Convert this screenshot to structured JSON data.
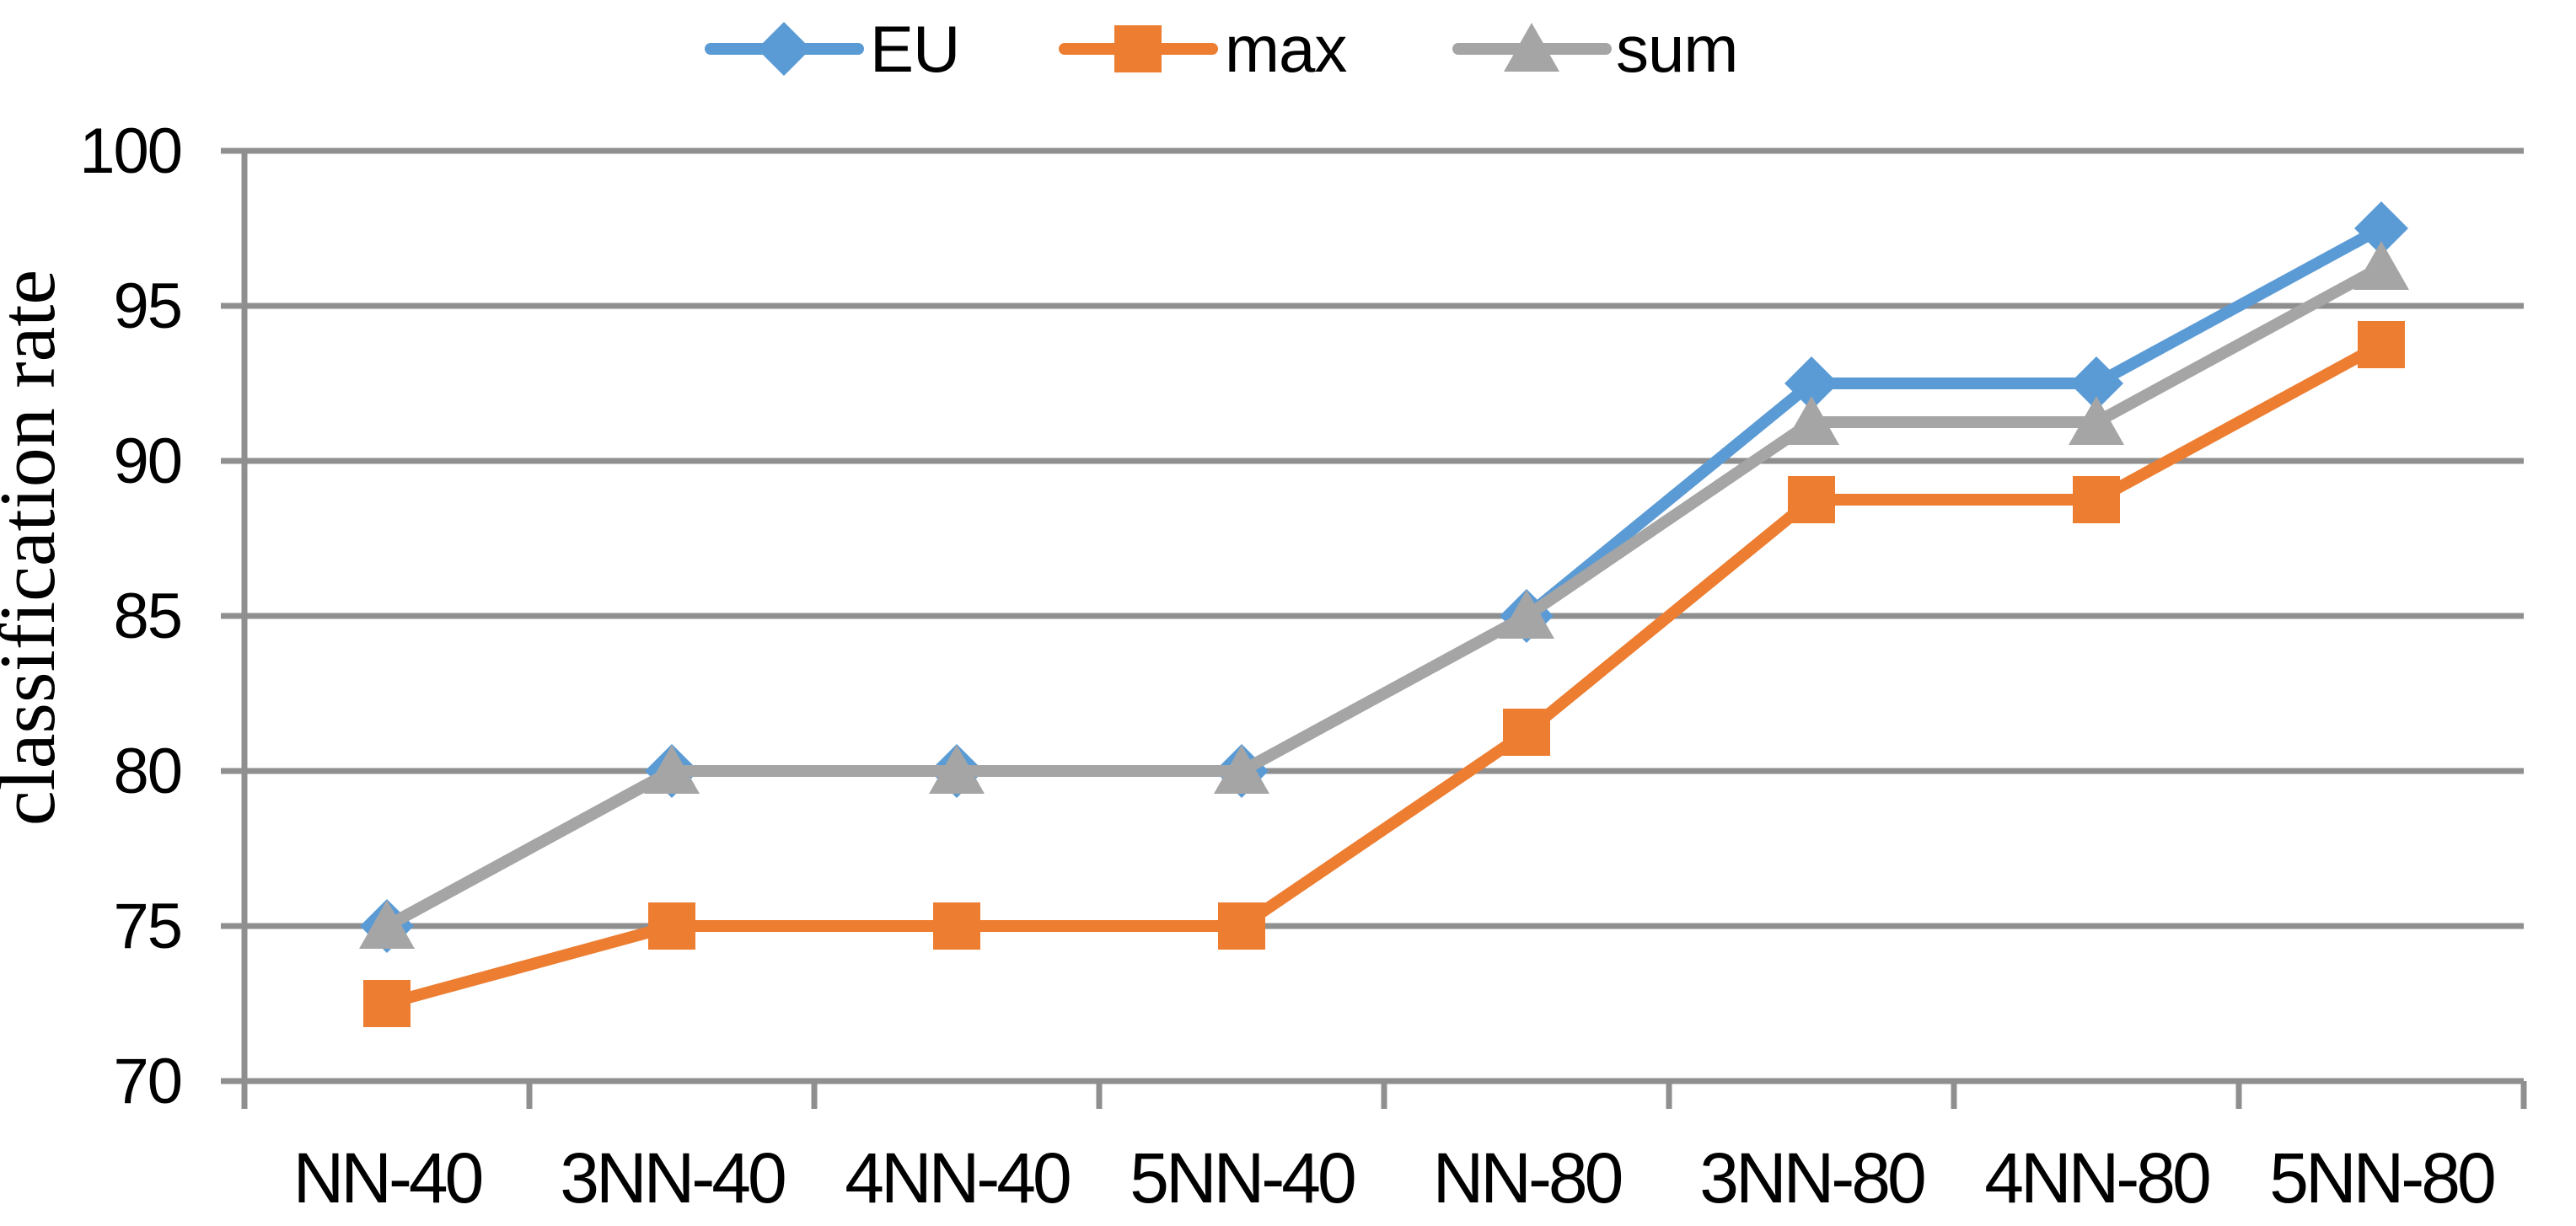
{
  "chart_data": {
    "type": "line",
    "title": "",
    "xlabel": "",
    "ylabel": "classification rate",
    "categories": [
      "NN-40",
      "3NN-40",
      "4NN-40",
      "5NN-40",
      "NN-80",
      "3NN-80",
      "4NN-80",
      "5NN-80"
    ],
    "series": [
      {
        "name": "EU",
        "color": "#5B9BD5",
        "marker": "diamond",
        "values": [
          75,
          80,
          80,
          80,
          85,
          92.5,
          92.5,
          97.5
        ]
      },
      {
        "name": "max",
        "color": "#ED7D31",
        "marker": "square",
        "values": [
          72.5,
          75,
          75,
          75,
          81.25,
          88.75,
          88.75,
          93.75
        ]
      },
      {
        "name": "sum",
        "color": "#A5A5A5",
        "marker": "triangle",
        "values": [
          75,
          80,
          80,
          80,
          85,
          91.25,
          91.25,
          96.25
        ]
      }
    ],
    "ylim": [
      70,
      100
    ],
    "yticks": [
      70,
      75,
      80,
      85,
      90,
      95,
      100
    ],
    "grid": true,
    "legend_position": "top"
  },
  "colors": {
    "grid": "#8F8F8F",
    "axis": "#8F8F8F",
    "text": "#000000",
    "background": "#FFFFFF"
  }
}
